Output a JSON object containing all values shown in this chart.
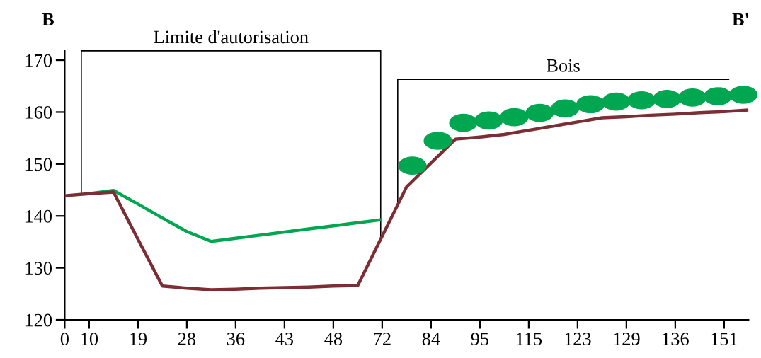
{
  "chart_data": {
    "type": "line",
    "annotations": [
      "B",
      "B'",
      "Limite d'autorisation",
      "Bois"
    ],
    "categories": [
      "0",
      "10",
      null,
      "19",
      null,
      "28",
      null,
      "36",
      null,
      "43",
      null,
      "48",
      null,
      "72",
      null,
      "84",
      null,
      "95",
      null,
      "115",
      null,
      "123",
      null,
      "129",
      null,
      "136",
      null,
      "151",
      null
    ],
    "series": [
      {
        "color": "#7b2f35",
        "values": [
          143.9,
          144.3,
          144.6,
          135.5,
          126.5,
          126.1,
          125.8,
          125.9,
          126.1,
          126.2,
          126.3,
          126.5,
          126.6,
          136.1,
          145.6,
          150.2,
          154.8,
          155.2,
          155.7,
          156.5,
          157.3,
          158.1,
          158.9,
          159.1,
          159.4,
          159.6,
          159.9,
          160.1,
          160.4
        ]
      },
      {
        "color": "#00a650",
        "values": [
          null,
          144.3,
          144.9,
          142.3,
          139.6,
          137.0,
          135.1,
          135.7,
          136.3,
          136.9,
          137.5,
          138.1,
          138.7,
          139.3,
          null,
          null,
          null,
          null,
          null,
          null,
          null,
          null,
          null,
          null,
          null,
          null,
          null,
          null,
          null
        ]
      }
    ],
    "ylim": [
      120,
      171.8
    ],
    "yticks": [
      120,
      130,
      140,
      150,
      160,
      170
    ],
    "marker": "none",
    "line_style": "solid"
  }
}
